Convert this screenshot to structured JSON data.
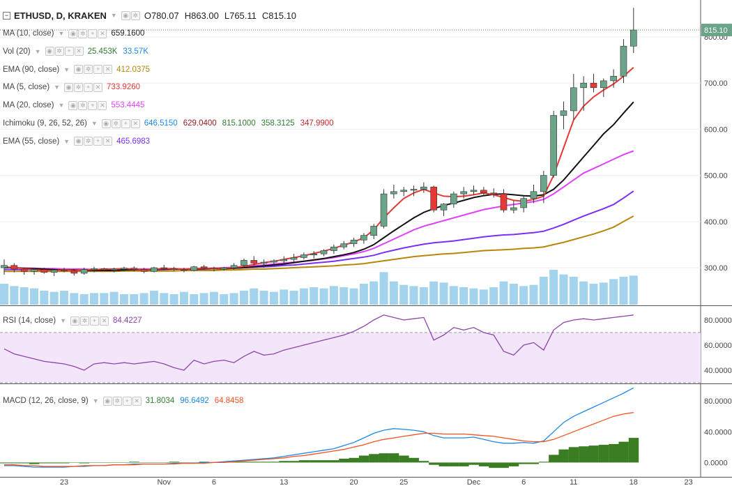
{
  "header": {
    "symbol": "ETHUSD, D, KRAKEN",
    "ohlc": [
      "O780.07",
      "H863.00",
      "L765.11",
      "C815.10"
    ]
  },
  "studies": [
    {
      "name": "MA (10, close)",
      "values": [
        {
          "t": "659.1600",
          "c": "#222222"
        }
      ]
    },
    {
      "name": "Vol (20)",
      "values": [
        {
          "t": "25.453K",
          "c": "#2e7d32"
        },
        {
          "t": "33.57K",
          "c": "#1e88e5"
        }
      ]
    },
    {
      "name": "EMA (90, close)",
      "values": [
        {
          "t": "412.0375",
          "c": "#b8860b"
        }
      ]
    },
    {
      "name": "MA (5, close)",
      "values": [
        {
          "t": "733.9260",
          "c": "#e53935"
        }
      ]
    },
    {
      "name": "MA (20, close)",
      "values": [
        {
          "t": "553.4445",
          "c": "#e040fb"
        }
      ]
    },
    {
      "name": "Ichimoku (9, 26, 52, 26)",
      "values": [
        {
          "t": "646.5150",
          "c": "#1e88e5"
        },
        {
          "t": "629.0400",
          "c": "#8b1a1a"
        },
        {
          "t": "815.1000",
          "c": "#2e7d32"
        },
        {
          "t": "358.3125",
          "c": "#2e7d32"
        },
        {
          "t": "347.9900",
          "c": "#c62828"
        }
      ]
    },
    {
      "name": "EMA (55, close)",
      "values": [
        {
          "t": "465.6983",
          "c": "#7b2ff7"
        }
      ]
    }
  ],
  "rsi_legend": {
    "name": "RSI (14, close)",
    "value": "84.4227"
  },
  "macd_legend": {
    "name": "MACD (12, 26, close, 9)",
    "values": [
      {
        "t": "31.8034",
        "c": "#2e7d32"
      },
      {
        "t": "96.6492",
        "c": "#1e88e5"
      },
      {
        "t": "64.8458",
        "c": "#f4511e"
      }
    ]
  },
  "price_label": "815.10",
  "colors": {
    "up": "#6aa58a",
    "down": "#e53935",
    "volume": "#86c4e8",
    "rsi_band": "#f3e6fb",
    "rsi_line": "#8e44ad",
    "macd_hist": "#3a7d22",
    "macd_line": "#1e88e5",
    "signal_line": "#f4511e"
  },
  "chart_data": {
    "type": "candlestick",
    "x_tick_labels": [
      "23",
      "Nov",
      "6",
      "13",
      "20",
      "25",
      "Dec",
      "6",
      "11",
      "18",
      "23"
    ],
    "price_axis": {
      "ticks": [
        "800.00",
        "700.00",
        "600.00",
        "500.00",
        "400.00",
        "300.00"
      ],
      "range": [
        220,
        880
      ]
    },
    "candles": [
      [
        300,
        318,
        285,
        305
      ],
      [
        305,
        310,
        290,
        297
      ],
      [
        297,
        300,
        285,
        292
      ],
      [
        292,
        298,
        285,
        296
      ],
      [
        296,
        300,
        287,
        290
      ],
      [
        290,
        298,
        282,
        295
      ],
      [
        295,
        300,
        290,
        293
      ],
      [
        293,
        297,
        283,
        288
      ],
      [
        288,
        300,
        285,
        296
      ],
      [
        296,
        302,
        290,
        298
      ],
      [
        298,
        300,
        292,
        295
      ],
      [
        295,
        300,
        290,
        297
      ],
      [
        297,
        302,
        292,
        299
      ],
      [
        299,
        303,
        292,
        296
      ],
      [
        296,
        300,
        288,
        292
      ],
      [
        292,
        302,
        290,
        300
      ],
      [
        300,
        306,
        295,
        298
      ],
      [
        298,
        302,
        293,
        296
      ],
      [
        296,
        300,
        290,
        294
      ],
      [
        294,
        304,
        292,
        302
      ],
      [
        302,
        306,
        296,
        299
      ],
      [
        299,
        302,
        292,
        297
      ],
      [
        297,
        302,
        294,
        300
      ],
      [
        300,
        310,
        296,
        305
      ],
      [
        305,
        320,
        300,
        316
      ],
      [
        316,
        325,
        305,
        310
      ],
      [
        310,
        318,
        300,
        312
      ],
      [
        312,
        318,
        305,
        315
      ],
      [
        315,
        325,
        310,
        318
      ],
      [
        318,
        330,
        312,
        322
      ],
      [
        322,
        333,
        318,
        328
      ],
      [
        328,
        336,
        320,
        330
      ],
      [
        330,
        340,
        325,
        337
      ],
      [
        337,
        350,
        330,
        345
      ],
      [
        345,
        358,
        340,
        352
      ],
      [
        352,
        365,
        345,
        360
      ],
      [
        360,
        375,
        352,
        370
      ],
      [
        370,
        395,
        362,
        390
      ],
      [
        390,
        470,
        385,
        460
      ],
      [
        460,
        480,
        450,
        465
      ],
      [
        465,
        475,
        455,
        468
      ],
      [
        468,
        478,
        455,
        470
      ],
      [
        470,
        485,
        462,
        475
      ],
      [
        475,
        478,
        420,
        425
      ],
      [
        425,
        440,
        412,
        438
      ],
      [
        438,
        465,
        430,
        460
      ],
      [
        460,
        475,
        450,
        465
      ],
      [
        465,
        478,
        458,
        468
      ],
      [
        468,
        475,
        455,
        462
      ],
      [
        462,
        472,
        452,
        460
      ],
      [
        460,
        470,
        420,
        425
      ],
      [
        425,
        445,
        418,
        430
      ],
      [
        430,
        455,
        420,
        450
      ],
      [
        450,
        480,
        440,
        465
      ],
      [
        465,
        510,
        440,
        500
      ],
      [
        500,
        640,
        495,
        630
      ],
      [
        630,
        660,
        600,
        640
      ],
      [
        640,
        720,
        620,
        690
      ],
      [
        690,
        715,
        640,
        700
      ],
      [
        700,
        720,
        680,
        690
      ],
      [
        690,
        710,
        670,
        705
      ],
      [
        705,
        730,
        690,
        715
      ],
      [
        715,
        795,
        700,
        780
      ],
      [
        780,
        863,
        765,
        815
      ]
    ],
    "volume": [
      18,
      16,
      15,
      14,
      12,
      11,
      12,
      10,
      9,
      10,
      10,
      11,
      9,
      9,
      10,
      12,
      10,
      9,
      11,
      9,
      10,
      11,
      9,
      10,
      12,
      14,
      12,
      11,
      13,
      12,
      14,
      15,
      14,
      16,
      15,
      14,
      18,
      20,
      28,
      20,
      17,
      16,
      15,
      20,
      19,
      16,
      15,
      14,
      13,
      15,
      20,
      18,
      16,
      17,
      24,
      30,
      26,
      24,
      20,
      18,
      19,
      22,
      24,
      25
    ],
    "ma10": [
      300,
      300,
      299,
      298,
      297,
      296,
      295,
      295,
      294,
      294,
      294,
      294,
      295,
      296,
      296,
      296,
      297,
      297,
      297,
      297,
      298,
      298,
      298,
      299,
      300,
      302,
      304,
      306,
      308,
      311,
      314,
      317,
      320,
      324,
      328,
      333,
      340,
      350,
      365,
      380,
      394,
      408,
      420,
      428,
      435,
      440,
      446,
      452,
      456,
      459,
      460,
      458,
      456,
      455,
      458,
      470,
      490,
      515,
      540,
      565,
      590,
      610,
      635,
      659
    ],
    "ma5": [
      302,
      300,
      298,
      296,
      294,
      294,
      295,
      294,
      295,
      296,
      297,
      297,
      298,
      297,
      296,
      297,
      298,
      298,
      297,
      298,
      299,
      299,
      299,
      300,
      303,
      307,
      311,
      314,
      318,
      322,
      326,
      331,
      336,
      342,
      349,
      356,
      365,
      382,
      408,
      430,
      450,
      462,
      470,
      462,
      455,
      454,
      455,
      458,
      462,
      458,
      452,
      446,
      444,
      448,
      455,
      500,
      560,
      620,
      650,
      670,
      685,
      698,
      715,
      734
    ],
    "ma20": [
      300,
      300,
      299,
      299,
      298,
      298,
      297,
      297,
      297,
      296,
      296,
      296,
      296,
      297,
      297,
      297,
      297,
      297,
      297,
      298,
      298,
      299,
      300,
      301,
      302,
      304,
      306,
      308,
      310,
      312,
      314,
      316,
      319,
      322,
      326,
      330,
      335,
      342,
      352,
      362,
      372,
      382,
      390,
      396,
      402,
      408,
      414,
      420,
      426,
      430,
      434,
      437,
      440,
      443,
      448,
      460,
      475,
      490,
      505,
      515,
      525,
      535,
      545,
      553
    ],
    "ema55": [
      296,
      296,
      296,
      296,
      296,
      296,
      296,
      296,
      296,
      296,
      296,
      296,
      296,
      296,
      296,
      296,
      296,
      297,
      297,
      297,
      297,
      298,
      298,
      299,
      300,
      301,
      302,
      303,
      305,
      306,
      308,
      310,
      312,
      314,
      317,
      320,
      323,
      327,
      333,
      338,
      343,
      347,
      351,
      354,
      356,
      358,
      361,
      364,
      367,
      369,
      371,
      372,
      374,
      376,
      379,
      386,
      394,
      403,
      412,
      420,
      428,
      437,
      451,
      466
    ],
    "ema90": [
      292,
      292,
      292,
      292,
      292,
      292,
      292,
      292,
      292,
      292,
      292,
      292,
      293,
      293,
      293,
      293,
      293,
      293,
      294,
      294,
      294,
      294,
      295,
      295,
      296,
      297,
      297,
      298,
      299,
      300,
      301,
      302,
      303,
      304,
      306,
      307,
      309,
      312,
      315,
      318,
      321,
      324,
      326,
      328,
      330,
      331,
      333,
      335,
      337,
      338,
      339,
      340,
      342,
      343,
      345,
      350,
      355,
      361,
      367,
      373,
      380,
      388,
      400,
      412
    ],
    "rsi": [
      57,
      53,
      51,
      49,
      47,
      46,
      45,
      43,
      40,
      45,
      46,
      45,
      46,
      45,
      46,
      47,
      45,
      42,
      40,
      48,
      45,
      47,
      48,
      46,
      51,
      55,
      52,
      53,
      56,
      58,
      60,
      62,
      64,
      66,
      68,
      71,
      75,
      80,
      84,
      82,
      80,
      81,
      82,
      64,
      68,
      74,
      72,
      74,
      70,
      68,
      55,
      52,
      60,
      62,
      56,
      72,
      78,
      80,
      81,
      80,
      81,
      82,
      83,
      84
    ],
    "rsi_axis": [
      "80.0000",
      "60.0000",
      "40.0000"
    ],
    "macd": [
      -4,
      -4,
      -5,
      -6,
      -6,
      -6,
      -6,
      -5,
      -5,
      -4,
      -4,
      -3,
      -3,
      -2,
      -2,
      -2,
      -2,
      -1,
      -1,
      -1,
      0,
      0,
      1,
      2,
      3,
      4,
      5,
      6,
      8,
      10,
      12,
      14,
      16,
      18,
      22,
      26,
      32,
      38,
      42,
      44,
      43,
      42,
      40,
      35,
      32,
      32,
      32,
      33,
      30,
      27,
      25,
      25,
      26,
      25,
      28,
      40,
      52,
      60,
      66,
      72,
      78,
      84,
      90,
      97
    ],
    "signal": [
      -3,
      -3,
      -4,
      -4,
      -5,
      -5,
      -5,
      -5,
      -4,
      -4,
      -4,
      -3,
      -3,
      -3,
      -2,
      -2,
      -2,
      -2,
      -1,
      -1,
      -1,
      0,
      0,
      1,
      2,
      3,
      4,
      5,
      6,
      8,
      9,
      11,
      13,
      15,
      17,
      20,
      23,
      27,
      30,
      32,
      34,
      36,
      38,
      38,
      37,
      37,
      37,
      36,
      35,
      34,
      32,
      30,
      28,
      27,
      27,
      30,
      35,
      40,
      45,
      50,
      55,
      60,
      63,
      65
    ],
    "macd_axis": [
      "80.0000",
      "40.0000",
      "0.0000"
    ]
  }
}
